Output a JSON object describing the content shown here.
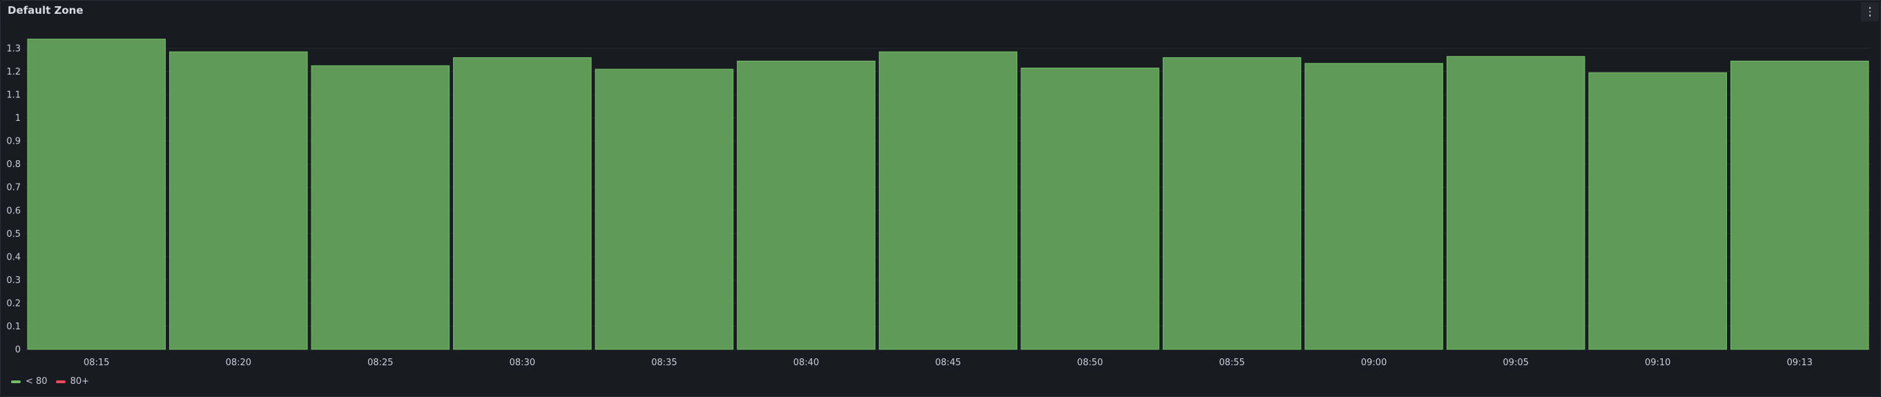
{
  "panel": {
    "title": "Default Zone",
    "menu_icon": "kebab-menu-icon"
  },
  "legend": [
    {
      "label": "< 80",
      "color": "#73bf69"
    },
    {
      "label": "80+",
      "color": "#f2495c"
    }
  ],
  "colors": {
    "bar_fill": "#5f9a58",
    "bar_stroke": "#73bf69",
    "grid": "#25272d",
    "tick_text": "#ccccdc"
  },
  "chart_data": {
    "type": "bar",
    "title": "Default Zone",
    "xlabel": "",
    "ylabel": "",
    "categories": [
      "08:15",
      "08:20",
      "08:25",
      "08:30",
      "08:35",
      "08:40",
      "08:45",
      "08:50",
      "08:55",
      "09:00",
      "09:05",
      "09:10",
      "09:13"
    ],
    "values": [
      1.34,
      1.285,
      1.225,
      1.26,
      1.21,
      1.245,
      1.285,
      1.215,
      1.26,
      1.235,
      1.265,
      1.195,
      1.245
    ],
    "ylim": [
      0,
      1.3
    ],
    "yticks": [
      "0",
      "0.1",
      "0.2",
      "0.3",
      "0.4",
      "0.5",
      "0.6",
      "0.7",
      "0.8",
      "0.9",
      "1",
      "1.1",
      "1.2",
      "1.3"
    ],
    "grid": true,
    "legend_position": "bottom-left"
  }
}
